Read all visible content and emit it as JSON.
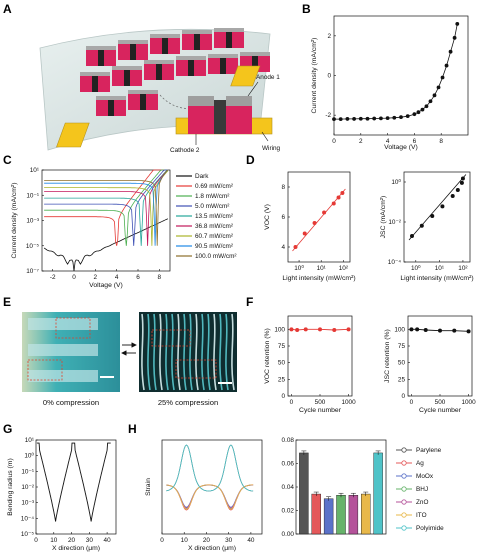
{
  "panels": {
    "A": {
      "letter": "A",
      "labels": {
        "anode": "Anode 1",
        "cathode": "Cathode 2",
        "wiring": "Wiring"
      }
    },
    "B": {
      "letter": "B"
    },
    "C": {
      "letter": "C"
    },
    "D": {
      "letter": "D"
    },
    "E": {
      "letter": "E",
      "captions": {
        "left": "0% compression",
        "right": "25% compression"
      }
    },
    "F": {
      "letter": "F"
    },
    "G": {
      "letter": "G"
    },
    "H": {
      "letter": "H"
    }
  },
  "colors": {
    "dark": "#111111",
    "c069": "#e53935",
    "c18": "#4caf50",
    "c50": "#3f51b5",
    "c135": "#26a69a",
    "c368": "#c2185b",
    "c607": "#aab52a",
    "c905": "#1e88e5",
    "c1000": "#8d6e2a",
    "parylene": "#555555",
    "ag": "#e4585a",
    "moox": "#5b72c9",
    "bhj": "#66b36a",
    "zno": "#b4529a",
    "ito": "#e8b84a",
    "polyimide": "#4fc3c8",
    "red_marker": "#e53935"
  },
  "chart_data": [
    {
      "id": "B",
      "type": "scatter",
      "xlabel": "Voltage (V)",
      "ylabel": "Current density (mA/cm²)",
      "xlim": [
        0,
        10
      ],
      "ylim": [
        -3,
        3
      ],
      "xticks": [
        0,
        2,
        4,
        6,
        8
      ],
      "yticks": [
        -2,
        0,
        2
      ],
      "x": [
        0,
        0.5,
        1,
        1.5,
        2,
        2.5,
        3,
        3.5,
        4,
        4.5,
        5,
        5.5,
        6,
        6.3,
        6.6,
        6.9,
        7.2,
        7.5,
        7.8,
        8.1,
        8.4,
        8.7,
        9,
        9.2
      ],
      "y": [
        -2.2,
        -2.2,
        -2.19,
        -2.19,
        -2.18,
        -2.18,
        -2.17,
        -2.16,
        -2.15,
        -2.13,
        -2.1,
        -2.05,
        -1.95,
        -1.85,
        -1.72,
        -1.55,
        -1.3,
        -1.0,
        -0.6,
        -0.1,
        0.5,
        1.2,
        1.9,
        2.6
      ]
    },
    {
      "id": "C",
      "type": "line",
      "xlabel": "Voltage (V)",
      "ylabel": "Current density (mA/cm²)",
      "xlim": [
        -3,
        9
      ],
      "ylim_log10": [
        -7,
        1
      ],
      "xticks": [
        -2,
        0,
        2,
        4,
        6,
        8
      ],
      "ytick_labels": [
        "10⁻⁷",
        "10⁻⁵",
        "10⁻³",
        "10⁻¹",
        "10¹"
      ],
      "series": [
        {
          "name": "Dark",
          "color_key": "dark",
          "jsc": 0,
          "voc": 0
        },
        {
          "name": "0.69 mW/cm²",
          "color_key": "c069",
          "jsc": 0.002,
          "voc": 4.0
        },
        {
          "name": "1.8 mW/cm²",
          "color_key": "c18",
          "jsc": 0.0065,
          "voc": 4.9
        },
        {
          "name": "5.0 mW/cm²",
          "color_key": "c50",
          "jsc": 0.02,
          "voc": 5.6
        },
        {
          "name": "13.5 mW/cm²",
          "color_key": "c135",
          "jsc": 0.06,
          "voc": 6.3
        },
        {
          "name": "36.8 mW/cm²",
          "color_key": "c368",
          "jsc": 0.2,
          "voc": 6.9
        },
        {
          "name": "60.7 mW/cm²",
          "color_key": "c607",
          "jsc": 0.4,
          "voc": 7.3
        },
        {
          "name": "90.5 mW/cm²",
          "color_key": "c905",
          "jsc": 0.9,
          "voc": 7.6
        },
        {
          "name": "100.0 mW/cm²",
          "color_key": "c1000",
          "jsc": 1.5,
          "voc": 7.8
        }
      ]
    },
    {
      "id": "D1",
      "type": "scatter",
      "xlabel": "Light intensity (mW/cm²)",
      "ylabel": "VOC (V)",
      "xscale": "log",
      "xlim_log10": [
        -0.5,
        2.3
      ],
      "ylim": [
        3,
        9
      ],
      "xtick_labels": [
        "10⁰",
        "10¹",
        "10²"
      ],
      "yticks": [
        4,
        6,
        8
      ],
      "x": [
        0.69,
        1.8,
        5.0,
        13.5,
        36.8,
        60.7,
        90.5
      ],
      "y": [
        4.0,
        4.9,
        5.6,
        6.3,
        6.9,
        7.3,
        7.6
      ]
    },
    {
      "id": "D2",
      "type": "scatter",
      "xlabel": "Light intensity (mW/cm²)",
      "ylabel": "JSC (mA/cm²)",
      "xscale": "log",
      "yscale": "log",
      "xlim_log10": [
        -0.5,
        2.3
      ],
      "ylim_log10": [
        -4,
        0.5
      ],
      "xtick_labels": [
        "10⁰",
        "10¹",
        "10²"
      ],
      "ytick_labels": [
        "10⁻⁴",
        "10⁻²",
        "10⁰"
      ],
      "x": [
        0.69,
        1.8,
        5.0,
        13.5,
        36.8,
        60.7,
        90.5,
        100
      ],
      "y": [
        0.002,
        0.0065,
        0.02,
        0.06,
        0.2,
        0.4,
        0.9,
        1.5
      ]
    },
    {
      "id": "F1",
      "type": "line",
      "xlabel": "Cycle number",
      "ylabel": "VOC retention (%)",
      "xlim": [
        -60,
        1060
      ],
      "ylim": [
        0,
        120
      ],
      "xticks": [
        0,
        500,
        1000
      ],
      "yticks": [
        0,
        25,
        50,
        75,
        100
      ],
      "x": [
        0,
        100,
        250,
        500,
        750,
        1000
      ],
      "y": [
        100,
        99,
        100,
        100,
        99,
        100
      ]
    },
    {
      "id": "F2",
      "type": "line",
      "xlabel": "Cycle number",
      "ylabel": "JSC retention (%)",
      "xlim": [
        -60,
        1060
      ],
      "ylim": [
        0,
        120
      ],
      "xticks": [
        0,
        500,
        1000
      ],
      "yticks": [
        0,
        25,
        50,
        75,
        100
      ],
      "x": [
        0,
        100,
        250,
        500,
        750,
        1000
      ],
      "y": [
        100,
        100,
        99,
        98,
        98,
        97
      ]
    },
    {
      "id": "G",
      "type": "line",
      "xlabel": "X direction (μm)",
      "ylabel": "Bending radius (m)",
      "xlim": [
        0,
        45
      ],
      "ylim_log10": [
        -5,
        1
      ],
      "xticks": [
        0,
        10,
        20,
        30,
        40
      ],
      "ytick_labels": [
        "10⁻⁵",
        "10⁻⁴",
        "10⁻³",
        "10⁻²",
        "10⁻¹",
        "10⁰",
        "10¹"
      ]
    },
    {
      "id": "H1",
      "type": "line",
      "xlabel": "X direction (μm)",
      "ylabel": "Strain",
      "xlim": [
        0,
        45
      ],
      "xticks": [
        0,
        10,
        20,
        30,
        40
      ]
    },
    {
      "id": "H2",
      "type": "bar",
      "ylim": [
        0,
        0.08
      ],
      "yticks": [
        0,
        0.02,
        0.04,
        0.06,
        0.08
      ],
      "ytick_labels": [
        "0.00",
        "0.02",
        "0.04",
        "0.06",
        "0.08"
      ],
      "categories": [
        "Parylene",
        "Ag",
        "MoOx",
        "BHJ",
        "ZnO",
        "ITO",
        "Polyimide"
      ],
      "values": [
        0.069,
        0.034,
        0.03,
        0.033,
        0.033,
        0.034,
        0.069
      ],
      "color_keys": [
        "parylene",
        "ag",
        "moox",
        "bhj",
        "zno",
        "ito",
        "polyimide"
      ]
    }
  ]
}
